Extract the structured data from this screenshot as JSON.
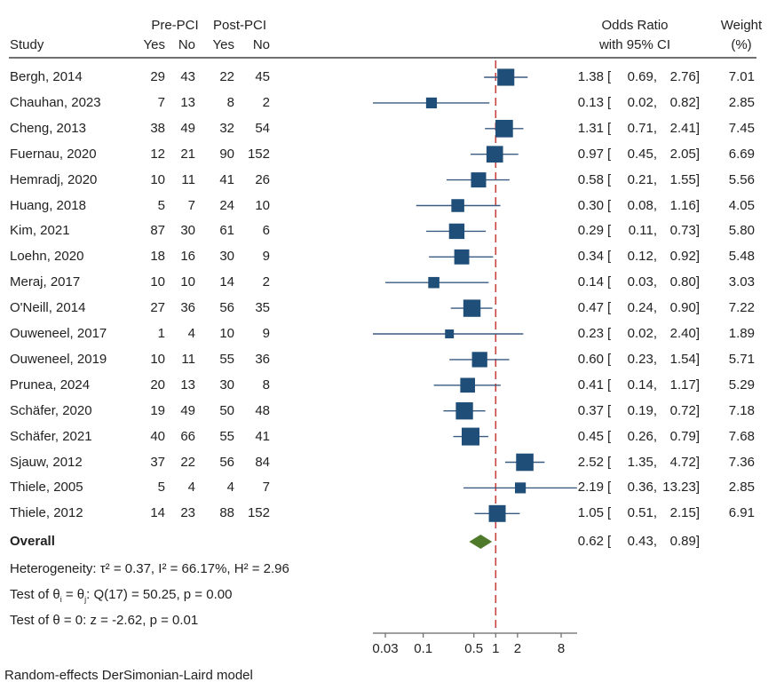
{
  "chart_data": {
    "type": "forest",
    "scale": "log",
    "xlabel": "",
    "x_ticks": [
      0.03,
      0.1,
      0.5,
      1,
      2,
      8
    ],
    "x_tick_labels": [
      "0.03",
      "0.1",
      "0.5",
      "1",
      "2",
      "8"
    ],
    "reference_line": 1,
    "headers": {
      "study": "Study",
      "pre_group": "Pre-PCI",
      "post_group": "Post-PCI",
      "yes": "Yes",
      "no": "No",
      "or_line1": "Odds Ratio",
      "or_line2": "with 95% CI",
      "weight_line1": "Weight",
      "weight_line2": "(%)"
    },
    "studies": [
      {
        "study": "Bergh, 2014",
        "pre_yes": "29",
        "pre_no": "43",
        "post_yes": "22",
        "post_no": "45",
        "or": 1.38,
        "lo": 0.69,
        "hi": 2.76,
        "or_text": "1.38",
        "lo_text": "0.69",
        "hi_text": "2.76",
        "weight": "7.01"
      },
      {
        "study": "Chauhan, 2023",
        "pre_yes": "7",
        "pre_no": "13",
        "post_yes": "8",
        "post_no": "2",
        "or": 0.13,
        "lo": 0.02,
        "hi": 0.82,
        "or_text": "0.13",
        "lo_text": "0.02",
        "hi_text": "0.82",
        "weight": "2.85"
      },
      {
        "study": "Cheng, 2013",
        "pre_yes": "38",
        "pre_no": "49",
        "post_yes": "32",
        "post_no": "54",
        "or": 1.31,
        "lo": 0.71,
        "hi": 2.41,
        "or_text": "1.31",
        "lo_text": "0.71",
        "hi_text": "2.41",
        "weight": "7.45"
      },
      {
        "study": "Fuernau, 2020",
        "pre_yes": "12",
        "pre_no": "21",
        "post_yes": "90",
        "post_no": "152",
        "or": 0.97,
        "lo": 0.45,
        "hi": 2.05,
        "or_text": "0.97",
        "lo_text": "0.45",
        "hi_text": "2.05",
        "weight": "6.69"
      },
      {
        "study": "Hemradj, 2020",
        "pre_yes": "10",
        "pre_no": "11",
        "post_yes": "41",
        "post_no": "26",
        "or": 0.58,
        "lo": 0.21,
        "hi": 1.55,
        "or_text": "0.58",
        "lo_text": "0.21",
        "hi_text": "1.55",
        "weight": "5.56"
      },
      {
        "study": "Huang, 2018",
        "pre_yes": "5",
        "pre_no": "7",
        "post_yes": "24",
        "post_no": "10",
        "or": 0.3,
        "lo": 0.08,
        "hi": 1.16,
        "or_text": "0.30",
        "lo_text": "0.08",
        "hi_text": "1.16",
        "weight": "4.05"
      },
      {
        "study": "Kim, 2021",
        "pre_yes": "87",
        "pre_no": "30",
        "post_yes": "61",
        "post_no": "6",
        "or": 0.29,
        "lo": 0.11,
        "hi": 0.73,
        "or_text": "0.29",
        "lo_text": "0.11",
        "hi_text": "0.73",
        "weight": "5.80"
      },
      {
        "study": "Loehn, 2020",
        "pre_yes": "18",
        "pre_no": "16",
        "post_yes": "30",
        "post_no": "9",
        "or": 0.34,
        "lo": 0.12,
        "hi": 0.92,
        "or_text": "0.34",
        "lo_text": "0.12",
        "hi_text": "0.92",
        "weight": "5.48"
      },
      {
        "study": "Meraj, 2017",
        "pre_yes": "10",
        "pre_no": "10",
        "post_yes": "14",
        "post_no": "2",
        "or": 0.14,
        "lo": 0.03,
        "hi": 0.8,
        "or_text": "0.14",
        "lo_text": "0.03",
        "hi_text": "0.80",
        "weight": "3.03"
      },
      {
        "study": "O'Neill, 2014",
        "pre_yes": "27",
        "pre_no": "36",
        "post_yes": "56",
        "post_no": "35",
        "or": 0.47,
        "lo": 0.24,
        "hi": 0.9,
        "or_text": "0.47",
        "lo_text": "0.24",
        "hi_text": "0.90",
        "weight": "7.22"
      },
      {
        "study": "Ouweneel, 2017",
        "pre_yes": "1",
        "pre_no": "4",
        "post_yes": "10",
        "post_no": "9",
        "or": 0.23,
        "lo": 0.02,
        "hi": 2.4,
        "or_text": "0.23",
        "lo_text": "0.02",
        "hi_text": "2.40",
        "weight": "1.89"
      },
      {
        "study": "Ouweneel, 2019",
        "pre_yes": "10",
        "pre_no": "11",
        "post_yes": "55",
        "post_no": "36",
        "or": 0.6,
        "lo": 0.23,
        "hi": 1.54,
        "or_text": "0.60",
        "lo_text": "0.23",
        "hi_text": "1.54",
        "weight": "5.71"
      },
      {
        "study": "Prunea, 2024",
        "pre_yes": "20",
        "pre_no": "13",
        "post_yes": "30",
        "post_no": "8",
        "or": 0.41,
        "lo": 0.14,
        "hi": 1.17,
        "or_text": "0.41",
        "lo_text": "0.14",
        "hi_text": "1.17",
        "weight": "5.29"
      },
      {
        "study": "Schäfer, 2020",
        "pre_yes": "19",
        "pre_no": "49",
        "post_yes": "50",
        "post_no": "48",
        "or": 0.37,
        "lo": 0.19,
        "hi": 0.72,
        "or_text": "0.37",
        "lo_text": "0.19",
        "hi_text": "0.72",
        "weight": "7.18"
      },
      {
        "study": "Schäfer, 2021",
        "pre_yes": "40",
        "pre_no": "66",
        "post_yes": "55",
        "post_no": "41",
        "or": 0.45,
        "lo": 0.26,
        "hi": 0.79,
        "or_text": "0.45",
        "lo_text": "0.26",
        "hi_text": "0.79",
        "weight": "7.68"
      },
      {
        "study": "Sjauw, 2012",
        "pre_yes": "37",
        "pre_no": "22",
        "post_yes": "56",
        "post_no": "84",
        "or": 2.52,
        "lo": 1.35,
        "hi": 4.72,
        "or_text": "2.52",
        "lo_text": "1.35",
        "hi_text": "4.72",
        "weight": "7.36"
      },
      {
        "study": "Thiele, 2005",
        "pre_yes": "5",
        "pre_no": "4",
        "post_yes": "4",
        "post_no": "7",
        "or": 2.19,
        "lo": 0.36,
        "hi": 13.23,
        "or_text": "2.19",
        "lo_text": "0.36",
        "hi_text": "13.23",
        "weight": "2.85"
      },
      {
        "study": "Thiele, 2012",
        "pre_yes": "14",
        "pre_no": "23",
        "post_yes": "88",
        "post_no": "152",
        "or": 1.05,
        "lo": 0.51,
        "hi": 2.15,
        "or_text": "1.05",
        "lo_text": "0.51",
        "hi_text": "2.15",
        "weight": "6.91"
      }
    ],
    "overall": {
      "label": "Overall",
      "or": 0.62,
      "lo": 0.43,
      "hi": 0.89,
      "or_text": "0.62",
      "lo_text": "0.43",
      "hi_text": "0.89"
    },
    "stats": {
      "heterogeneity": "Heterogeneity: τ² = 0.37, I² = 66.17%, H² = 2.96",
      "test_theta_prefix": "Test of θ",
      "test_theta_sub_i": "i",
      "test_theta_mid": " = θ",
      "test_theta_sub_j": "j",
      "test_theta_suffix": ": Q(17) = 50.25, p = 0.00",
      "test_zero": "Test of θ = 0: z = -2.62, p = 0.01"
    },
    "model_note": "Random-effects DerSimonian-Laird model",
    "colors": {
      "study_marker": "#1f4e79",
      "ci_line": "#3a5a80",
      "overall_diamond": "#4f7a2a",
      "reference_line": "#c8423e",
      "axis": "#666666"
    }
  }
}
